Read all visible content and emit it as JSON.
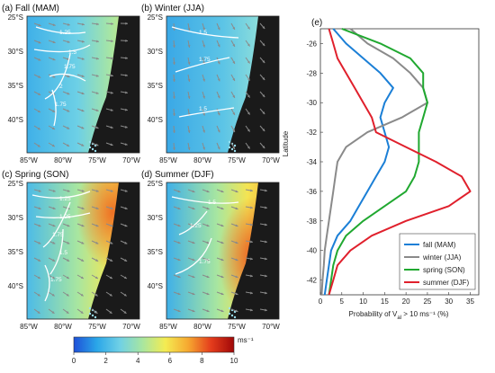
{
  "panels": [
    {
      "label": "(a) Fall (MAM)",
      "contours": [
        "1.25",
        "1.5",
        "1.75",
        "2",
        "1.75"
      ],
      "lat_labels": [
        "25°S",
        "30°S",
        "35°S",
        "40°S"
      ],
      "lon_labels": []
    },
    {
      "label": "(b) Winter (JJA)",
      "contours": [
        "1.5",
        "1.75",
        "1.5"
      ],
      "lat_labels": [
        "25°S",
        "30°S",
        "35°S",
        "40°S"
      ],
      "lon_labels": []
    },
    {
      "label": "(c) Spring (SON)",
      "contours": [
        "1.25",
        "1.25",
        "1.75",
        "1.5",
        "1.75"
      ],
      "lat_labels": [
        "25°S",
        "30°S",
        "35°S",
        "40°S"
      ],
      "lon_labels": [
        "85°W",
        "80°W",
        "75°W",
        "70°W"
      ]
    },
    {
      "label": "(d) Summer (DJF)",
      "contours": [
        "1.5",
        "1.25",
        "1.75"
      ],
      "lat_labels": [
        "25°S",
        "30°S",
        "35°S",
        "40°S"
      ],
      "lon_labels": [
        "85°W",
        "80°W",
        "75°W",
        "70°W"
      ]
    }
  ],
  "top_lon_labels": [
    "85°W",
    "80°W",
    "75°W",
    "70°W"
  ],
  "colorbar": {
    "ticks": [
      "0",
      "2",
      "4",
      "6",
      "8",
      "10"
    ],
    "unit": "ms⁻¹",
    "colors": [
      "#1e50d8",
      "#2aa6e8",
      "#6fd0e6",
      "#a8e6a0",
      "#f4ec52",
      "#f6a830",
      "#e43c1c",
      "#a00808"
    ]
  },
  "chart_data": {
    "type": "line",
    "panel_label": "(e)",
    "xlabel": "Probability of V",
    "xlabel_sub": "al",
    "xlabel_rest": " > 10 ms⁻¹ (%)",
    "ylabel": "Latitude",
    "xlim": [
      0,
      37
    ],
    "ylim": [
      -43,
      -25
    ],
    "xticks": [
      "0",
      "5",
      "10",
      "15",
      "20",
      "25",
      "30",
      "35"
    ],
    "yticks": [
      "-26",
      "-28",
      "-30",
      "-32",
      "-34",
      "-36",
      "-38",
      "-40",
      "-42"
    ],
    "legend_position": "bottom-right",
    "series": [
      {
        "name": "fall (MAM)",
        "color": "#1b7fd6",
        "lat": [
          -25,
          -26,
          -27,
          -28,
          -29,
          -30,
          -31,
          -32,
          -33,
          -34,
          -35,
          -36,
          -37,
          -38,
          -39,
          -40,
          -41,
          -42,
          -43
        ],
        "values": [
          3,
          6,
          10,
          14,
          17,
          15,
          14,
          15,
          16,
          15,
          13,
          11,
          9,
          7,
          4,
          2.5,
          2,
          1.5,
          1
        ]
      },
      {
        "name": "winter (JJA)",
        "color": "#8a8a8a",
        "lat": [
          -25,
          -26,
          -27,
          -28,
          -29,
          -30,
          -31,
          -32,
          -33,
          -34,
          -35,
          -36,
          -37,
          -38,
          -39,
          -40,
          -41,
          -42,
          -43
        ],
        "values": [
          7,
          11,
          17,
          21,
          24,
          25,
          19,
          11,
          6,
          4,
          3.5,
          3,
          2.5,
          2,
          1.5,
          1,
          0.8,
          0.5,
          0.3
        ]
      },
      {
        "name": "spring (SON)",
        "color": "#20a830",
        "lat": [
          -25,
          -26,
          -27,
          -28,
          -29,
          -30,
          -31,
          -32,
          -33,
          -34,
          -35,
          -36,
          -37,
          -38,
          -39,
          -40,
          -41,
          -42,
          -43
        ],
        "values": [
          5,
          14,
          21,
          24,
          24,
          25,
          24,
          23,
          23,
          23,
          22,
          20,
          15,
          10,
          6,
          4,
          3,
          2.5,
          2
        ]
      },
      {
        "name": "summer (DJF)",
        "color": "#e0202c",
        "lat": [
          -25,
          -26,
          -27,
          -28,
          -29,
          -30,
          -31,
          -32,
          -33,
          -34,
          -35,
          -36,
          -37,
          -38,
          -39,
          -40,
          -41,
          -42,
          -43
        ],
        "values": [
          2,
          3,
          4,
          6,
          8,
          10,
          12,
          13,
          20,
          27,
          33,
          35,
          30,
          20,
          12,
          7,
          4,
          3,
          2
        ]
      }
    ]
  }
}
